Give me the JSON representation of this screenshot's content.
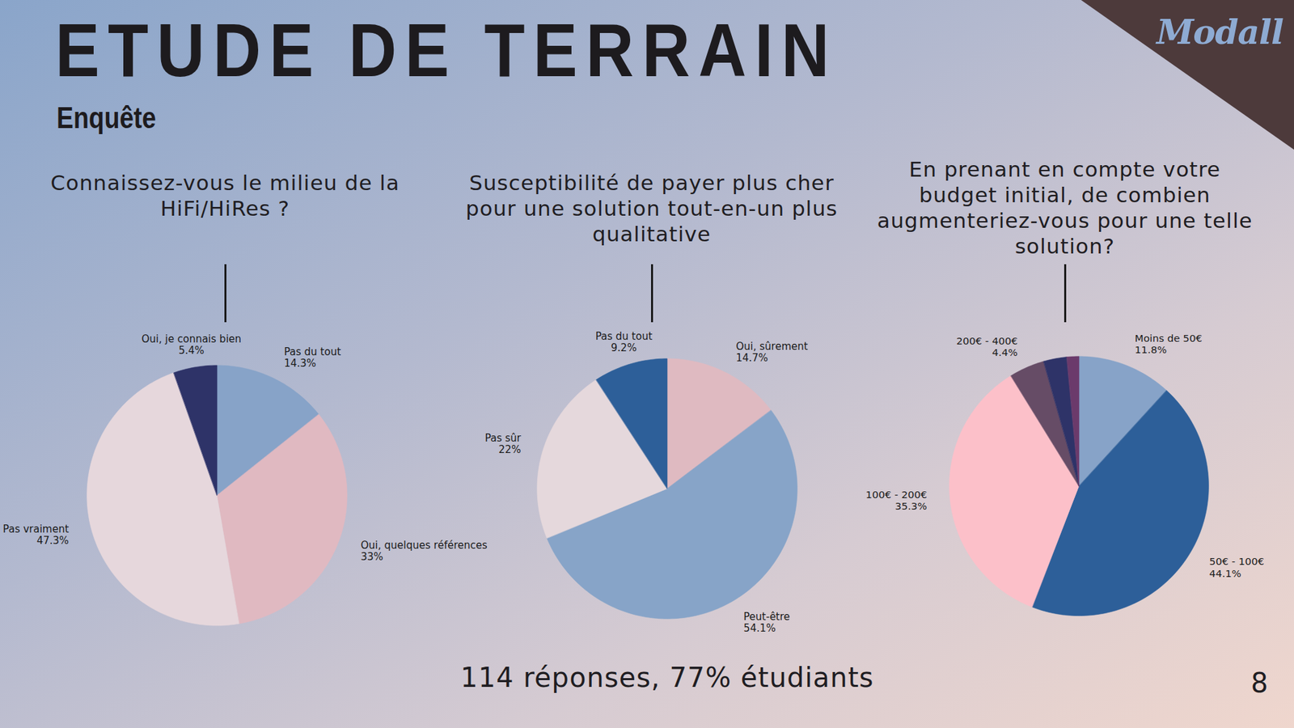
{
  "title": "ETUDE DE TERRAIN",
  "subtitle": "Enquête",
  "logo": "Modall",
  "footer": "114 réponses, 77% étudiants",
  "page_number": "8",
  "chart_data": [
    {
      "type": "pie",
      "title": "Connaissez-vous le milieu de la HiFi/HiRes ?",
      "categories": [
        "Pas du tout",
        "Oui, quelques références",
        "Pas vraiment",
        "Oui, je connais bien"
      ],
      "values": [
        14.3,
        33,
        47.3,
        5.4
      ],
      "value_labels": [
        "14.3%",
        "33%",
        "47.3%",
        "5.4%"
      ],
      "colors": [
        "#87a3c8",
        "#e0b9c1",
        "#e6d7dc",
        "#2e3368"
      ],
      "data_labels": true
    },
    {
      "type": "pie",
      "title": "Susceptibilité de payer plus cher pour une solution tout-en-un plus qualitative",
      "categories": [
        "Oui, sûrement",
        "Peut-être",
        "Pas sûr",
        "Pas du tout"
      ],
      "values": [
        14.7,
        54.1,
        22,
        9.2
      ],
      "value_labels": [
        "14.7%",
        "54.1%",
        "22%",
        "9.2%"
      ],
      "colors": [
        "#dfbac1",
        "#87a4c8",
        "#e5d8dc",
        "#2d5f99"
      ],
      "data_labels": true
    },
    {
      "type": "pie",
      "title": "En prenant en compte votre budget initial, de combien augmenteriez-vous pour une telle solution?",
      "categories": [
        "Moins de 50€",
        "50€ - 100€",
        "100€ - 200€",
        "200€ - 400€",
        null,
        null
      ],
      "values": [
        11.8,
        44.1,
        35.3,
        4.4,
        2.9,
        1.5
      ],
      "value_labels": [
        "11.8%",
        "44.1%",
        "35.3%",
        "4.4%",
        null,
        null
      ],
      "colors": [
        "#87a3c8",
        "#2d5f99",
        "#fcc0c9",
        "#664c66",
        "#2e3368",
        "#6b3a6b"
      ],
      "data_labels": true
    }
  ]
}
